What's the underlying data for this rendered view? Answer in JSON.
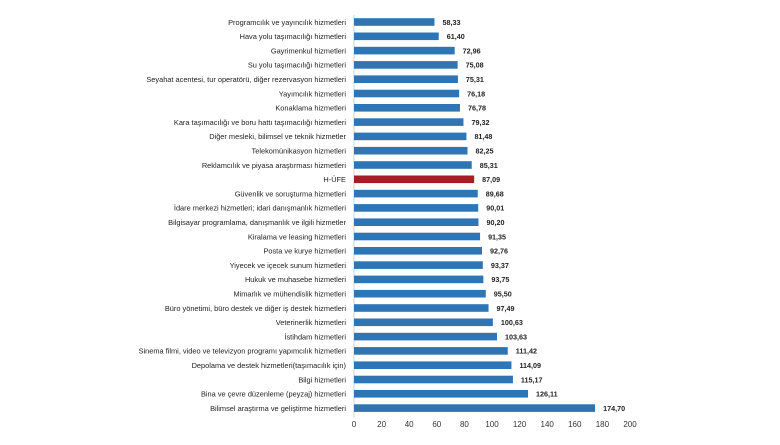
{
  "chart_data": {
    "type": "bar",
    "orientation": "horizontal",
    "title": "",
    "xlabel": "",
    "ylabel": "",
    "xlim": [
      0,
      200
    ],
    "x_ticks": [
      "0",
      "20",
      "40",
      "60",
      "80",
      "100",
      "120",
      "140",
      "160",
      "180",
      "200"
    ],
    "grid": false,
    "legend": "none",
    "colors": {
      "default": "#2e75b6",
      "highlight": "#a31f24"
    },
    "highlight_category": "H-ÜFE",
    "categories": [
      "Programcılık ve yayıncılık hizmetleri",
      "Hava yolu taşımacılığı hizmetleri",
      "Gayrimenkul hizmetleri",
      "Su yolu taşımacılığı hizmetleri",
      "Seyahat acentesi, tur operatörü, diğer rezervasyon hizmetleri",
      "Yayımcılık hizmetleri",
      "Konaklama hizmetleri",
      "Kara taşımacılığı ve boru hattı taşımacılığı hizmetleri",
      "Diğer mesleki, bilimsel ve teknik hizmetler",
      "Telekomünikasyon hizmetleri",
      "Reklamcılık ve piyasa araştırması hizmetleri",
      "H-ÜFE",
      "Güvenlik ve soruşturma hizmetleri",
      "İdare merkezi hizmetleri; idari danışmanlık hizmetleri",
      "Bilgisayar programlama, danışmanlık ve ilgili hizmetler",
      "Kiralama ve leasing hizmetleri",
      "Posta ve kurye hizmetleri",
      "Yiyecek ve içecek sunum hizmetleri",
      "Hukuk ve muhasebe hizmetleri",
      "Mimarlık ve mühendislik hizmetleri",
      "Büro yönetimi, büro destek ve diğer iş destek hizmetleri",
      "Veterinerlik hizmetleri",
      "İstihdam hizmetleri",
      "Sinema filmi, video ve televizyon programı yapımcılık hizmetleri",
      "Depolama ve destek hizmetleri(taşımacılık için)",
      "Bilgi hizmetleri",
      "Bina ve çevre düzenleme (peyzaj) hizmetleri",
      "Bilimsel araştırma ve geliştirme hizmetleri"
    ],
    "values": [
      58.33,
      61.4,
      72.96,
      75.08,
      75.31,
      76.18,
      76.78,
      79.32,
      81.48,
      82.25,
      85.31,
      87.09,
      89.68,
      90.01,
      90.2,
      91.35,
      92.76,
      93.37,
      93.75,
      95.5,
      97.49,
      100.63,
      103.63,
      111.42,
      114.09,
      115.17,
      126.11,
      174.7
    ],
    "value_labels": [
      "58,33",
      "61,40",
      "72,96",
      "75,08",
      "75,31",
      "76,18",
      "76,78",
      "79,32",
      "81,48",
      "82,25",
      "85,31",
      "87,09",
      "89,68",
      "90,01",
      "90,20",
      "91,35",
      "92,76",
      "93,37",
      "93,75",
      "95,50",
      "97,49",
      "100,63",
      "103,63",
      "111,42",
      "114,09",
      "115,17",
      "126,11",
      "174,70"
    ]
  }
}
